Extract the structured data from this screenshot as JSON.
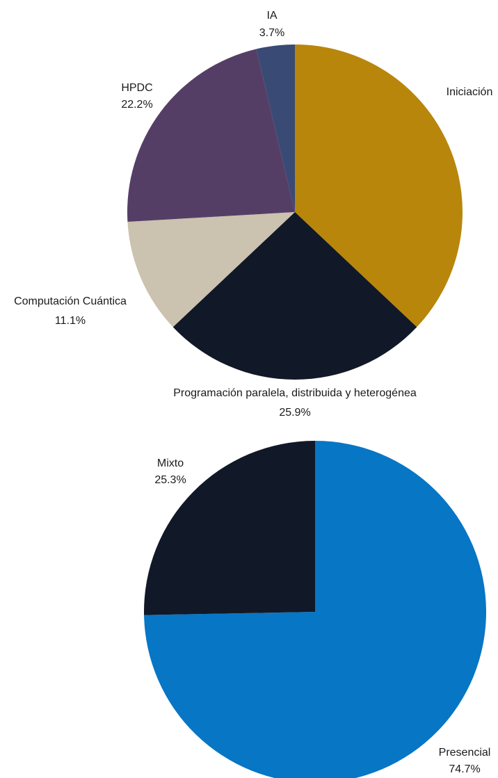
{
  "chart_data": [
    {
      "type": "pie",
      "slices": [
        {
          "label": "Iniciación",
          "value": 37.0,
          "value_label": "",
          "color": "#B8860B"
        },
        {
          "label": "Programación paralela, distribuida y heterogénea",
          "value": 25.9,
          "value_label": "25.9%",
          "color": "#111827"
        },
        {
          "label": "Computación Cuántica",
          "value": 11.1,
          "value_label": "11.1%",
          "color": "#CBC2AF"
        },
        {
          "label": "HPDC",
          "value": 22.2,
          "value_label": "22.2%",
          "color": "#553E66"
        },
        {
          "label": "IA",
          "value": 3.7,
          "value_label": "3.7%",
          "color": "#394A74"
        }
      ],
      "start_angle": "12 o'clock",
      "direction": "clockwise",
      "legend": "none"
    },
    {
      "type": "pie",
      "slices": [
        {
          "label": "Presencial",
          "value": 74.7,
          "value_label": "74.7%",
          "color": "#0776C4"
        },
        {
          "label": "Mixto",
          "value": 25.3,
          "value_label": "25.3%",
          "color": "#111827"
        }
      ],
      "start_angle": "12 o'clock",
      "direction": "clockwise",
      "legend": "none"
    }
  ]
}
